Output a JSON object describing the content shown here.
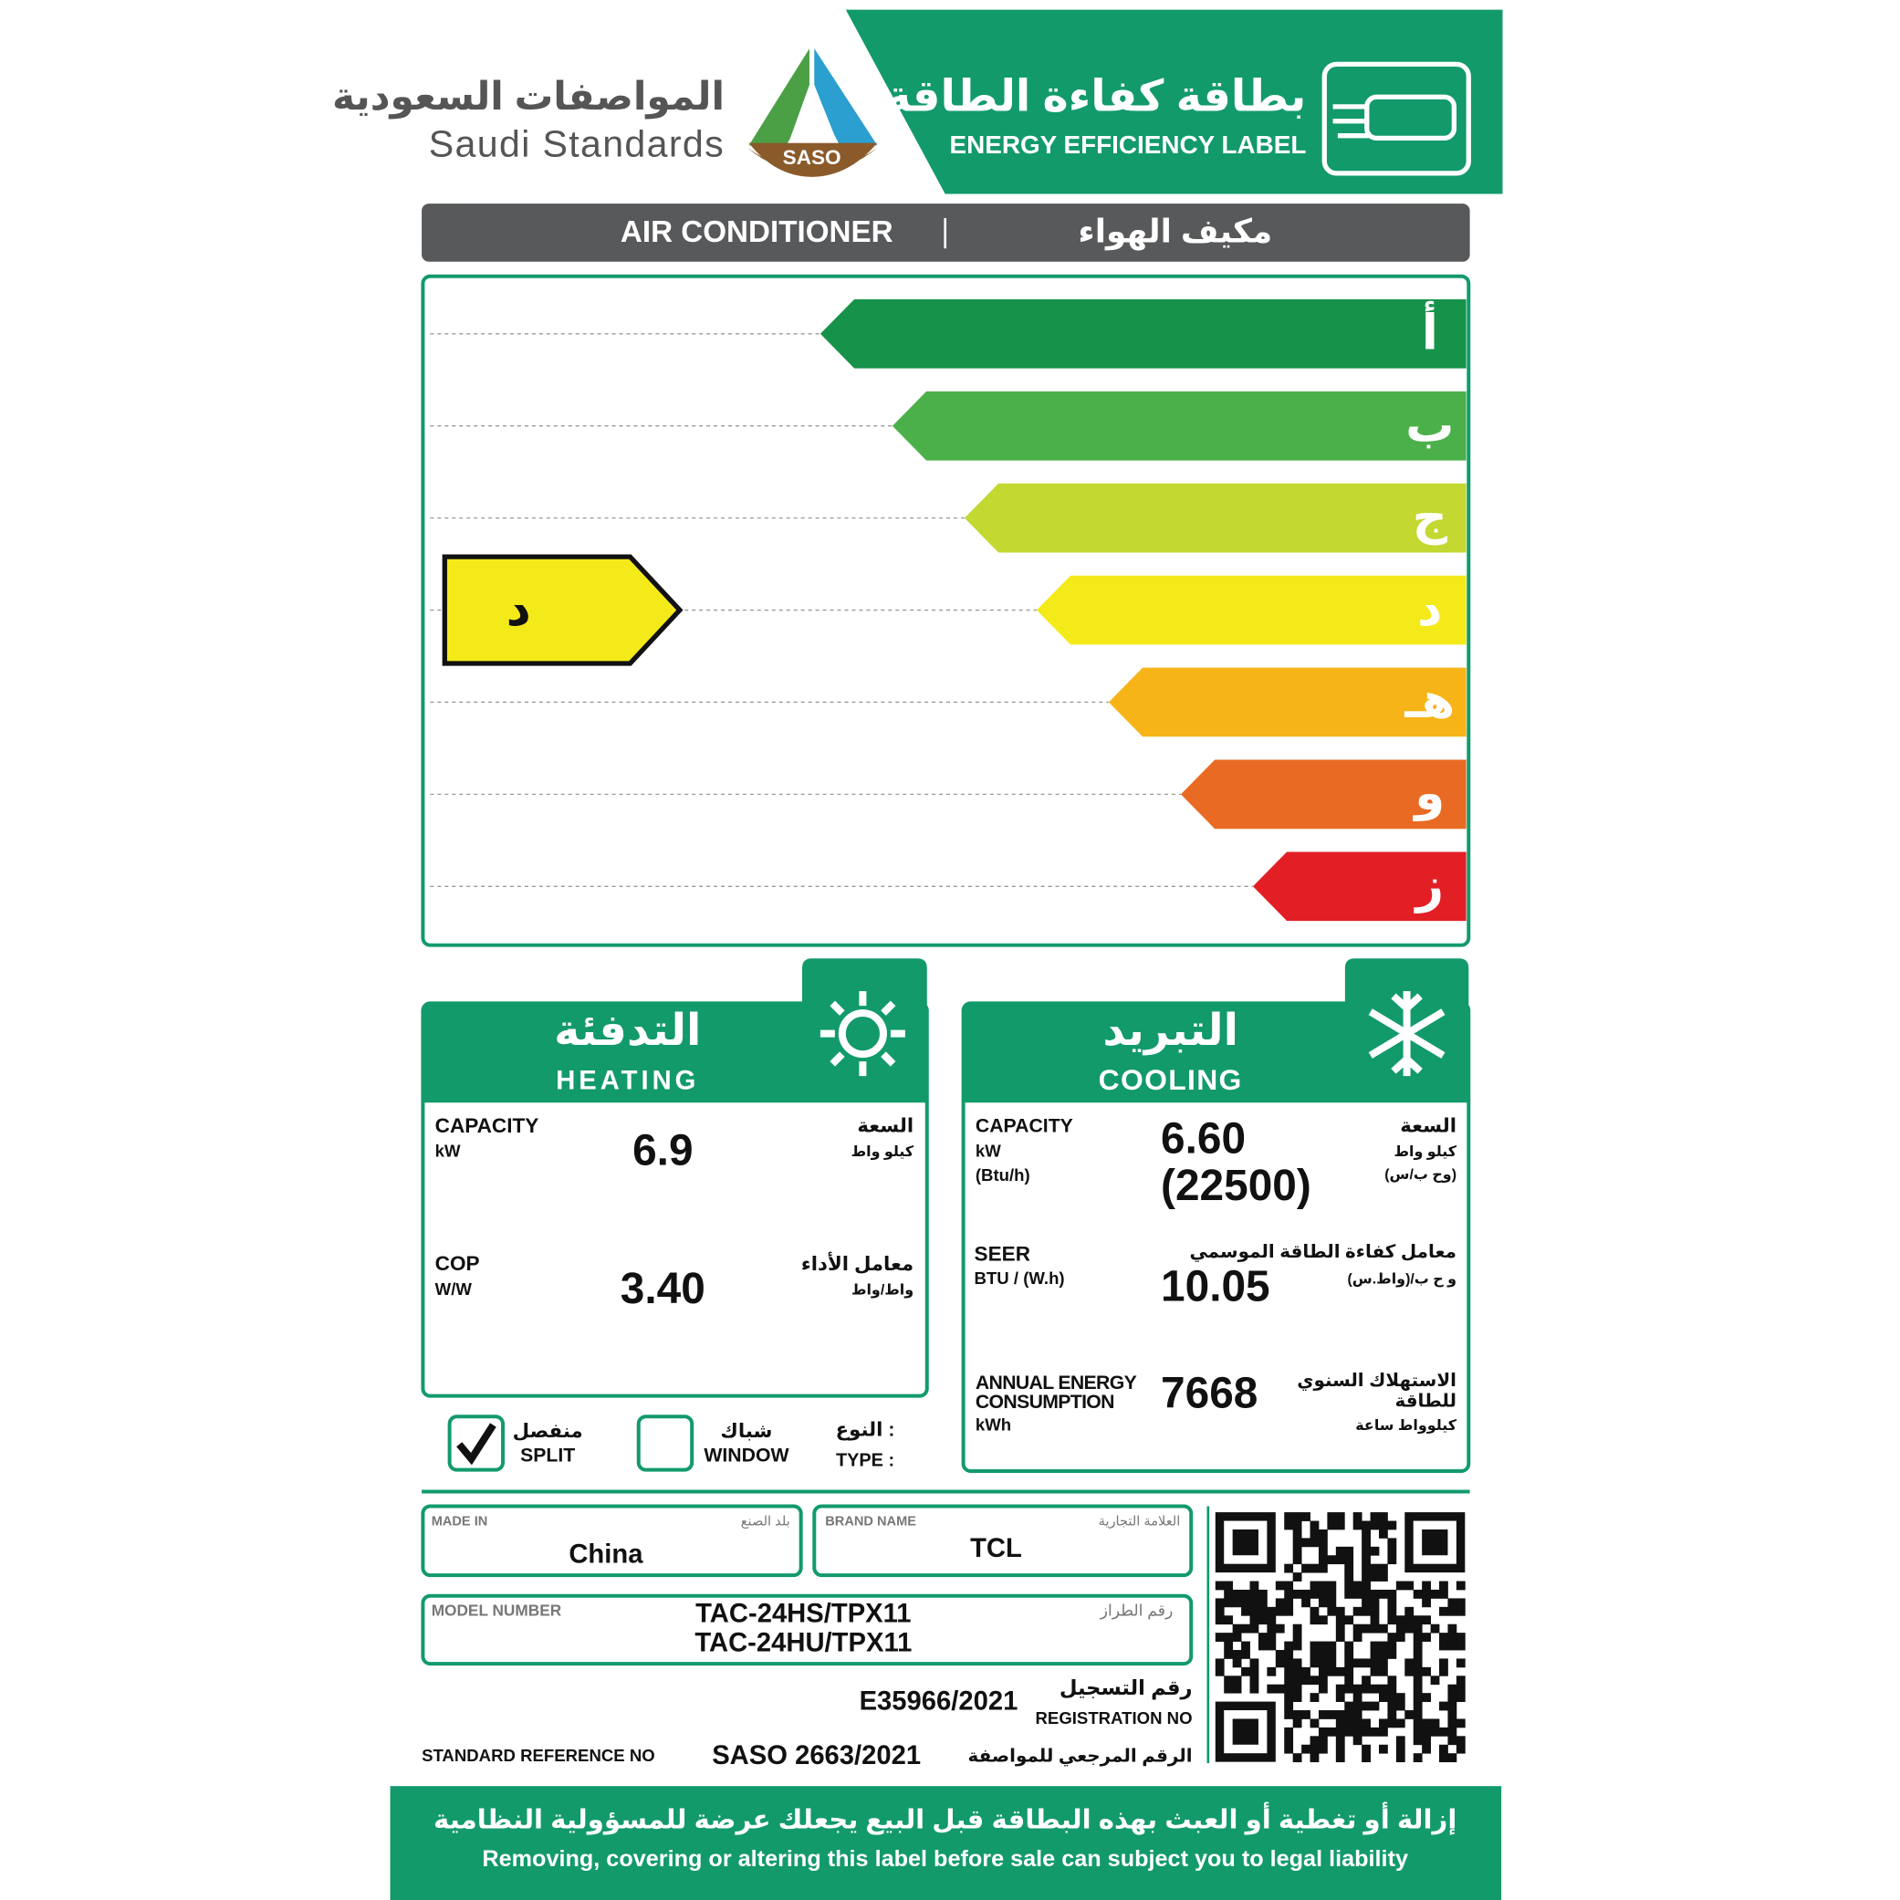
{
  "header": {
    "org_arabic": "المواصفات السعودية",
    "org_english": "Saudi Standards",
    "logo_text": "SASO",
    "label_arabic": "بطاقة كفاءة الطاقة",
    "label_english": "ENERGY EFFICIENCY LABEL"
  },
  "product": {
    "english": "AIR CONDITIONER",
    "arabic": "مكيف الهواء"
  },
  "rating": {
    "classes": [
      "أ",
      "ب",
      "ج",
      "د",
      "هـ",
      "و",
      "ز"
    ],
    "colors": [
      "#17924a",
      "#4cb04a",
      "#c3d831",
      "#f4ea1a",
      "#f6b418",
      "#e96b23",
      "#e31f26"
    ],
    "selected": "د"
  },
  "heating": {
    "title_arabic": "التدفئة",
    "title_english": "HEATING",
    "capacity": {
      "label_english": "CAPACITY",
      "unit_english": "kW",
      "label_arabic": "السعة",
      "unit_arabic": "كيلو واط",
      "value": "6.9"
    },
    "cop": {
      "label_english": "COP",
      "unit_english": "W/W",
      "label_arabic": "معامل الأداء",
      "unit_arabic": "واط/واط",
      "value": "3.40"
    }
  },
  "cooling": {
    "title_arabic": "التبريد",
    "title_english": "COOLING",
    "capacity": {
      "label_english": "CAPACITY",
      "units_english": [
        "kW",
        "(Btu/h)"
      ],
      "label_arabic": "السعة",
      "units_arabic": [
        "كيلو واط",
        "(وح ب/س)"
      ],
      "values": [
        "6.60",
        "(22500)"
      ]
    },
    "seer": {
      "label_english": "SEER",
      "unit_english": "BTU / (W.h)",
      "label_arabic": "معامل كفاءة الطاقة الموسمي",
      "unit_arabic": "و ح ب/(واط.س)",
      "value": "10.05"
    },
    "annual": {
      "label_english": [
        "ANNUAL ENERGY",
        "CONSUMPTION"
      ],
      "unit_english": "kWh",
      "label_arabic": [
        "الاستهلاك السنوي",
        "للطاقة"
      ],
      "unit_arabic": "كيلوواط ساعة",
      "value": "7668"
    }
  },
  "type": {
    "label_arabic": "النوع :",
    "label_english": "TYPE :",
    "options": [
      {
        "arabic": "منفصل",
        "english": "SPLIT",
        "checked": true
      },
      {
        "arabic": "شباك",
        "english": "WINDOW",
        "checked": false
      }
    ]
  },
  "details": {
    "made_in": {
      "label_english": "MADE IN",
      "label_arabic": "بلد الصنع",
      "value": "China"
    },
    "brand": {
      "label_english": "BRAND NAME",
      "label_arabic": "العلامة التجارية",
      "value": "TCL"
    },
    "model": {
      "label_english": "MODEL NUMBER",
      "label_arabic": "رقم الطراز",
      "values": [
        "TAC-24HS/TPX11",
        "TAC-24HU/TPX11"
      ]
    },
    "registration": {
      "label_arabic": "رقم التسجيل",
      "label_english": "REGISTRATION NO",
      "value": "E35966/2021"
    },
    "standard": {
      "label_english": "STANDARD REFERENCE NO",
      "value": "SASO 2663/2021",
      "label_arabic": "الرقم المرجعي للمواصفة"
    }
  },
  "footer": {
    "arabic": "إزالة أو تغطية أو العبث بهذه البطاقة قبل البيع يجعلك عرضة للمسؤولية النظامية",
    "english": "Removing, covering or altering this label before sale can subject you to legal liability"
  }
}
